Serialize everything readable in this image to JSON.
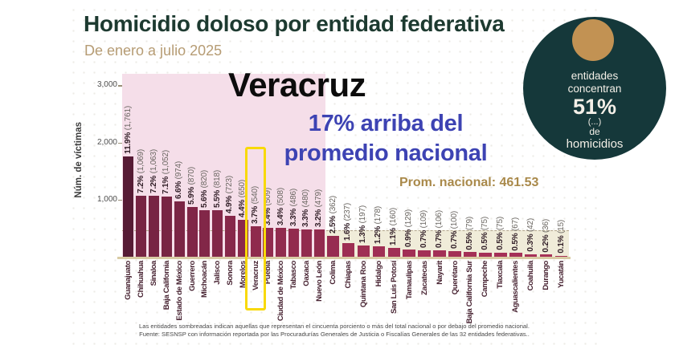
{
  "title": "Homicidio doloso por entidad federativa",
  "subtitle": "De enero a julio 2025",
  "headline": {
    "state": "Veracruz",
    "note_line1": "17% arriba del",
    "note_line2": "promedio nacional"
  },
  "prom_label": "Prom. nacional: 461.53",
  "yaxis": {
    "label": "Núm. de víctimas"
  },
  "badge": {
    "lines": [
      "entidades",
      "concentran",
      "51%",
      "(...)",
      "de",
      "homicidios"
    ]
  },
  "footnote": {
    "line1": "Las entidades sombreadas indican aquellas que representan el cincuenta porciento o más del total nacional o por debajo del promedio nacional.",
    "line2": "Fuente: SESNSP con información reportada por las Procuradurías Generales de Justicia o Fiscalías Generales de las 32 entidades federativas.."
  },
  "colors": {
    "title_green": "#1d3a30",
    "subtitle_tan": "#b69c74",
    "note_blue": "#3d43b3",
    "prom_gold": "#a9894a",
    "region_pink": "#f5dee9",
    "region_beige": "#f0ecd9",
    "bar_dark": "#571b35",
    "bar_light": "#a83158",
    "highlight_yellow": "#f8d908",
    "badge_green": "#15383a",
    "badge_gold": "#c29253",
    "axis_tan": "#d9cba4"
  },
  "chart_data": {
    "type": "bar",
    "title": "Homicidio doloso por entidad federativa",
    "xlabel": "",
    "ylabel": "Núm. de víctimas",
    "ylim": [
      0,
      3200
    ],
    "yticks": [
      1000,
      2000,
      3000
    ],
    "ytick_labels": [
      "1,000",
      "2,000",
      "3,000"
    ],
    "grid": false,
    "national_average": 461.53,
    "highlight": "Veracruz",
    "highlight_index": 10,
    "shaded_above_average_count": 16,
    "categories": [
      "Guanajuato",
      "Chihuahua",
      "Sinaloa",
      "Baja California",
      "Estado de México",
      "Guerrero",
      "Michoacán",
      "Jalisco",
      "Sonora",
      "Morelos",
      "Veracruz",
      "Puebla",
      "Ciudad de México",
      "Tabasco",
      "Oaxaca",
      "Nuevo León",
      "Colima",
      "Chiapas",
      "Quintana Roo",
      "Hidalgo",
      "San Luis Potosí",
      "Tamaulipas",
      "Zacatecas",
      "Nayarit",
      "Querétaro",
      "Baja California Sur",
      "Campeche",
      "Tlaxcala",
      "Aguascalientes",
      "Coahuila",
      "Durango",
      "Yucatán"
    ],
    "values": [
      1761,
      1069,
      1063,
      1052,
      974,
      870,
      820,
      818,
      723,
      650,
      540,
      509,
      508,
      486,
      480,
      479,
      362,
      237,
      197,
      178,
      160,
      129,
      109,
      106,
      100,
      79,
      75,
      75,
      67,
      42,
      36,
      15
    ],
    "value_display": [
      "1,761",
      "1,069",
      "1,063",
      "1,052",
      "974",
      "870",
      "820",
      "818",
      "723",
      "650",
      "540",
      "509",
      "508",
      "486",
      "480",
      "479",
      "362",
      "237",
      "197",
      "178",
      "160",
      "129",
      "109",
      "106",
      "100",
      "79",
      "75",
      "75",
      "67",
      "42",
      "36",
      "15"
    ],
    "pct": [
      "11.9%",
      "7.2%",
      "7.2%",
      "7.1%",
      "6.6%",
      "5.9%",
      "5.6%",
      "5.5%",
      "4.9%",
      "4.4%",
      "3.7%",
      "3.4%",
      "3.4%",
      "3.3%",
      "3.3%",
      "3.2%",
      "2.5%",
      "1.6%",
      "1.3%",
      "1.2%",
      "1.1%",
      "0.9%",
      "0.7%",
      "0.7%",
      "0.7%",
      "0.5%",
      "0.5%",
      "0.5%",
      "0.5%",
      "0.3%",
      "0.2%",
      "0.1%"
    ]
  }
}
